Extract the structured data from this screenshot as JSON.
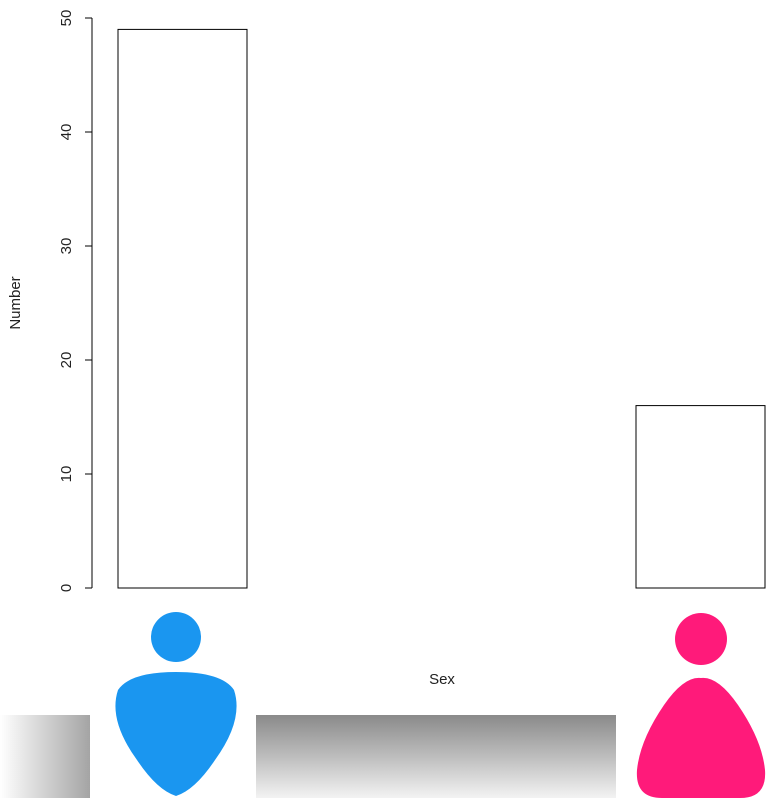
{
  "chart_data": {
    "type": "bar",
    "categories": [
      "Male",
      "Female"
    ],
    "values": [
      49,
      16
    ],
    "xlabel": "Sex",
    "ylabel": "Number",
    "ylim": [
      0,
      50
    ],
    "yticks": [
      0,
      10,
      20,
      30,
      40,
      50
    ],
    "grid": false,
    "bar_fill": "#ffffff",
    "bar_stroke": "#000000",
    "category_icons": [
      {
        "name": "male-person-icon",
        "color": "#1a96f0"
      },
      {
        "name": "female-person-icon",
        "color": "#ff1a7a"
      }
    ]
  }
}
